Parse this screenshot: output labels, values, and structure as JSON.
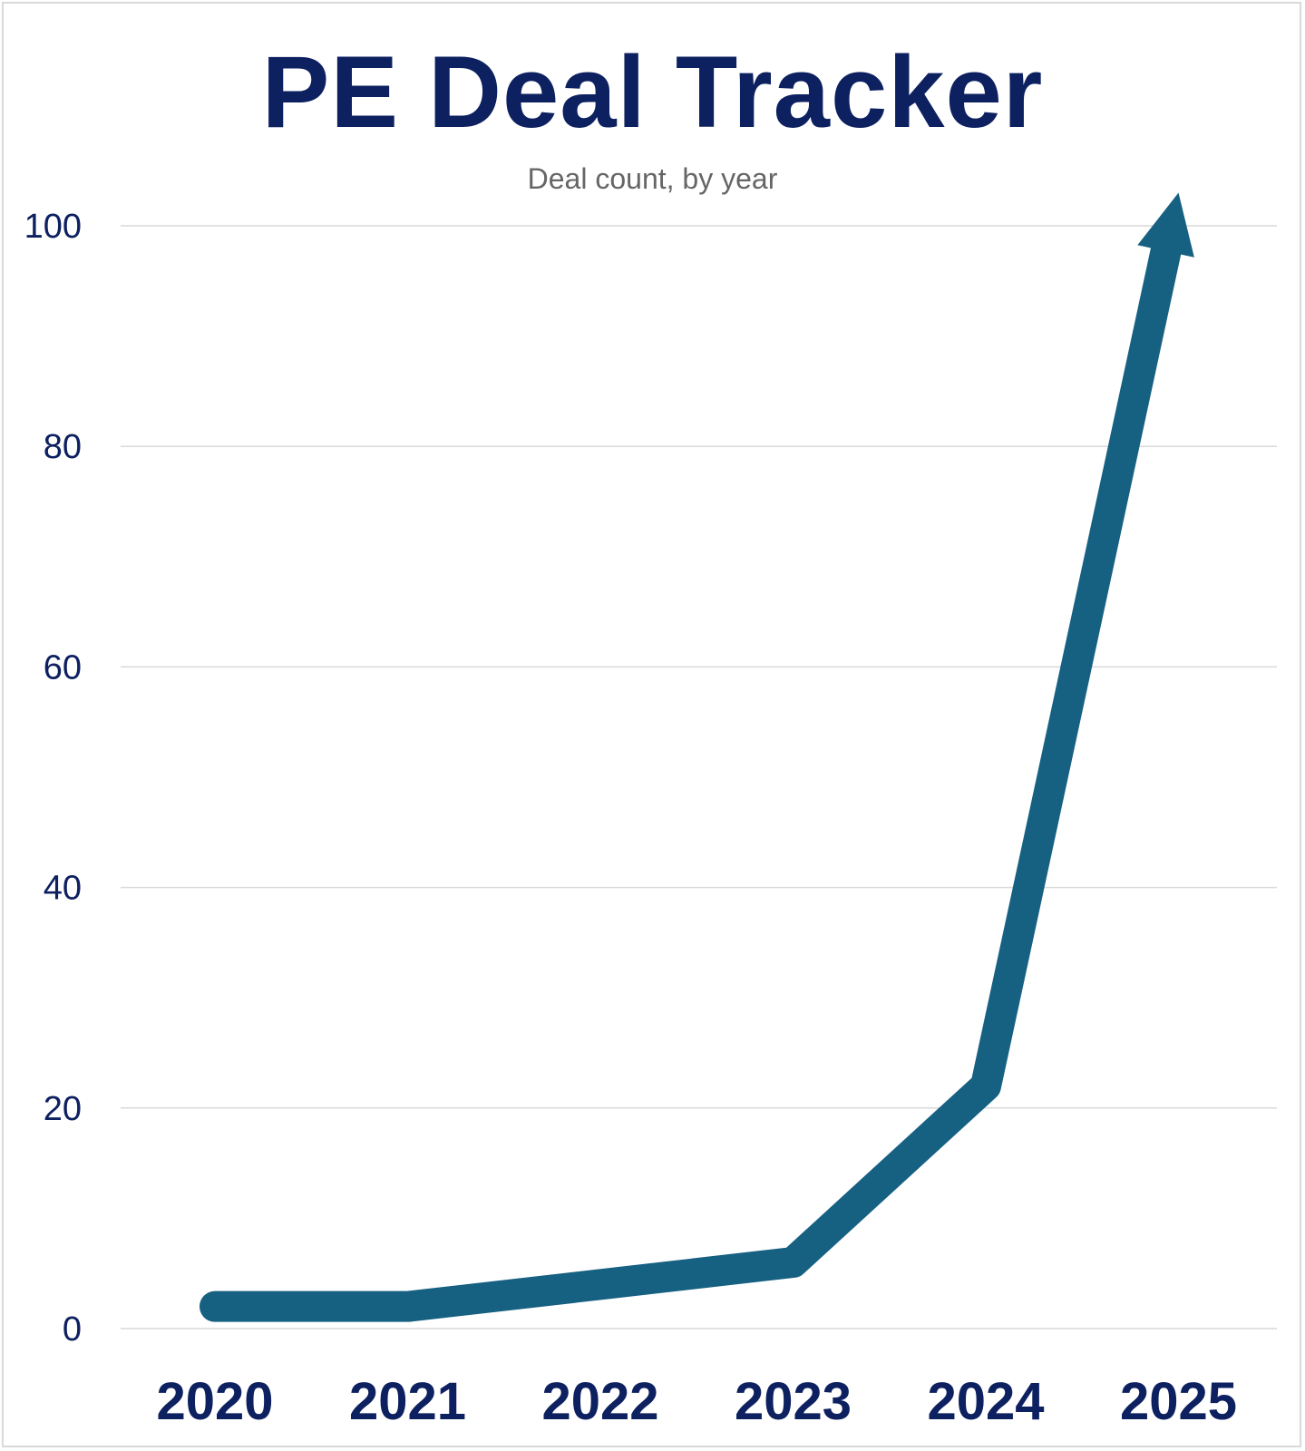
{
  "chart_data": {
    "type": "line",
    "title": "PE Deal Tracker",
    "subtitle": "Deal count, by year",
    "xlabel": "",
    "ylabel": "",
    "categories": [
      "2020",
      "2021",
      "2022",
      "2023",
      "2024",
      "2025"
    ],
    "series": [
      {
        "values": [
          2,
          2,
          4,
          6,
          22,
          103
        ]
      }
    ],
    "ylim": [
      0,
      100
    ],
    "yticks": [
      0,
      20,
      40,
      60,
      80,
      100
    ],
    "grid": true,
    "legend": "none",
    "line_end": "arrow",
    "colors": {
      "line": "#166082",
      "title": "#0d2060",
      "subtitle": "#666666",
      "grid": "#d9d9d9",
      "ticks": "#0d2060"
    }
  }
}
